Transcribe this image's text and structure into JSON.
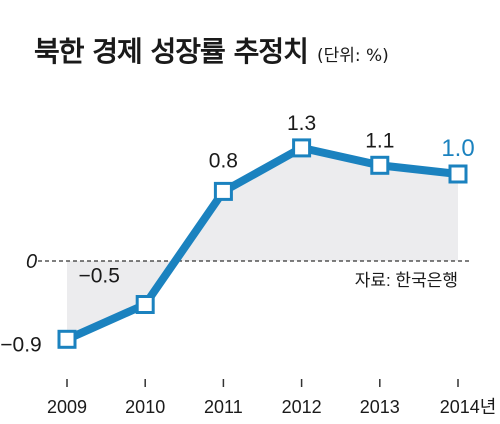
{
  "title": "북한 경제 성장률 추정치",
  "unit": "(단위: %)",
  "source": "자료: 한국은행",
  "colors": {
    "line": "#1b82bf",
    "area": "#ececee",
    "text": "#1a1a1a",
    "highlight": "#1b82bf"
  },
  "chart_data": {
    "type": "line",
    "title": "북한 경제 성장률 추정치",
    "ylabel": "(단위: %)",
    "xlabel": "",
    "categories": [
      "2009",
      "2010",
      "2011",
      "2012",
      "2013",
      "2014년"
    ],
    "x": [
      2009,
      2010,
      2011,
      2012,
      2013,
      2014
    ],
    "values": [
      -0.9,
      -0.5,
      0.8,
      1.3,
      1.1,
      1.0
    ],
    "value_labels": [
      "−0.9",
      "−0.5",
      "0.8",
      "1.3",
      "1.1",
      "1.0"
    ],
    "zero_label": "0",
    "ylim": [
      -1.2,
      1.5
    ],
    "grid": false,
    "zero_line": "dashed",
    "highlight_last": true
  }
}
